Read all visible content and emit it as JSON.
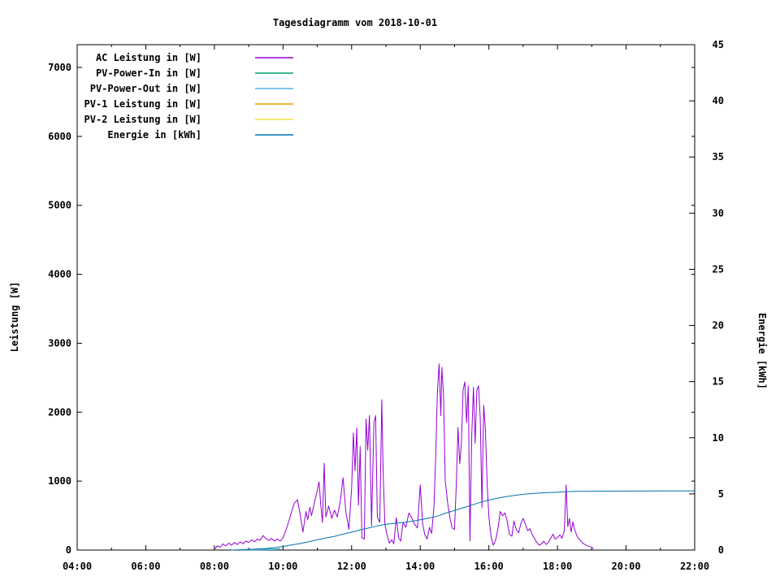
{
  "chart_data": {
    "type": "line",
    "title": "Tagesdiagramm vom 2018-10-01",
    "background": "#ffffff",
    "x_axis": {
      "range_hours": [
        4,
        22
      ],
      "minor_every_hours": 1,
      "major_ticks": [
        {
          "hour": 4,
          "label": "04:00"
        },
        {
          "hour": 6,
          "label": "06:00"
        },
        {
          "hour": 8,
          "label": "08:00"
        },
        {
          "hour": 10,
          "label": "10:00"
        },
        {
          "hour": 12,
          "label": "12:00"
        },
        {
          "hour": 14,
          "label": "14:00"
        },
        {
          "hour": 16,
          "label": "16:00"
        },
        {
          "hour": 18,
          "label": "18:00"
        },
        {
          "hour": 20,
          "label": "20:00"
        },
        {
          "hour": 22,
          "label": "22:00"
        }
      ]
    },
    "y_left": {
      "label": "Leistung [W]",
      "range": [
        0,
        7330
      ],
      "ticks": [
        {
          "value": 0,
          "label": "0"
        },
        {
          "value": 1000,
          "label": "1000"
        },
        {
          "value": 2000,
          "label": "2000"
        },
        {
          "value": 3000,
          "label": "3000"
        },
        {
          "value": 4000,
          "label": "4000"
        },
        {
          "value": 5000,
          "label": "5000"
        },
        {
          "value": 6000,
          "label": "6000"
        },
        {
          "value": 7000,
          "label": "7000"
        }
      ]
    },
    "y_right": {
      "label": "Energie [kWh]",
      "range": [
        0,
        45
      ],
      "ticks": [
        {
          "value": 0,
          "label": "0"
        },
        {
          "value": 5,
          "label": "5"
        },
        {
          "value": 10,
          "label": "10"
        },
        {
          "value": 15,
          "label": "15"
        },
        {
          "value": 20,
          "label": "20"
        },
        {
          "value": 25,
          "label": "25"
        },
        {
          "value": 30,
          "label": "30"
        },
        {
          "value": 35,
          "label": "35"
        },
        {
          "value": 40,
          "label": "40"
        },
        {
          "value": 45,
          "label": "45"
        }
      ]
    },
    "legend_position": "top-left-inside",
    "series": [
      {
        "name": "AC Leistung in [W]",
        "color": "#9400d3",
        "axis": "y1",
        "points": [
          [
            8.0,
            10
          ],
          [
            8.08,
            60
          ],
          [
            8.17,
            40
          ],
          [
            8.25,
            90
          ],
          [
            8.33,
            60
          ],
          [
            8.42,
            100
          ],
          [
            8.5,
            70
          ],
          [
            8.58,
            110
          ],
          [
            8.67,
            80
          ],
          [
            8.75,
            120
          ],
          [
            8.83,
            90
          ],
          [
            8.92,
            130
          ],
          [
            9.0,
            110
          ],
          [
            9.08,
            150
          ],
          [
            9.17,
            120
          ],
          [
            9.25,
            160
          ],
          [
            9.33,
            140
          ],
          [
            9.42,
            210
          ],
          [
            9.5,
            170
          ],
          [
            9.58,
            140
          ],
          [
            9.67,
            170
          ],
          [
            9.75,
            130
          ],
          [
            9.83,
            160
          ],
          [
            9.92,
            130
          ],
          [
            10.0,
            180
          ],
          [
            10.08,
            280
          ],
          [
            10.17,
            420
          ],
          [
            10.25,
            560
          ],
          [
            10.33,
            680
          ],
          [
            10.42,
            730
          ],
          [
            10.5,
            520
          ],
          [
            10.58,
            260
          ],
          [
            10.67,
            560
          ],
          [
            10.72,
            440
          ],
          [
            10.78,
            620
          ],
          [
            10.83,
            500
          ],
          [
            10.92,
            700
          ],
          [
            11.0,
            870
          ],
          [
            11.05,
            990
          ],
          [
            11.1,
            650
          ],
          [
            11.15,
            400
          ],
          [
            11.2,
            1260
          ],
          [
            11.25,
            480
          ],
          [
            11.33,
            640
          ],
          [
            11.42,
            460
          ],
          [
            11.5,
            580
          ],
          [
            11.58,
            480
          ],
          [
            11.67,
            700
          ],
          [
            11.75,
            1050
          ],
          [
            11.83,
            560
          ],
          [
            11.92,
            300
          ],
          [
            12.0,
            900
          ],
          [
            12.05,
            1700
          ],
          [
            12.1,
            1150
          ],
          [
            12.15,
            1770
          ],
          [
            12.2,
            650
          ],
          [
            12.25,
            1500
          ],
          [
            12.3,
            180
          ],
          [
            12.37,
            160
          ],
          [
            12.42,
            1900
          ],
          [
            12.47,
            1450
          ],
          [
            12.52,
            1950
          ],
          [
            12.58,
            350
          ],
          [
            12.65,
            1850
          ],
          [
            12.7,
            1950
          ],
          [
            12.75,
            480
          ],
          [
            12.82,
            400
          ],
          [
            12.88,
            2180
          ],
          [
            12.92,
            1100
          ],
          [
            12.97,
            380
          ],
          [
            13.03,
            220
          ],
          [
            13.1,
            100
          ],
          [
            13.17,
            150
          ],
          [
            13.23,
            90
          ],
          [
            13.3,
            470
          ],
          [
            13.37,
            180
          ],
          [
            13.43,
            130
          ],
          [
            13.5,
            400
          ],
          [
            13.58,
            330
          ],
          [
            13.67,
            540
          ],
          [
            13.75,
            470
          ],
          [
            13.83,
            380
          ],
          [
            13.92,
            320
          ],
          [
            14.0,
            945
          ],
          [
            14.07,
            380
          ],
          [
            14.13,
            230
          ],
          [
            14.2,
            160
          ],
          [
            14.27,
            330
          ],
          [
            14.33,
            240
          ],
          [
            14.4,
            620
          ],
          [
            14.45,
            1350
          ],
          [
            14.5,
            2280
          ],
          [
            14.55,
            2700
          ],
          [
            14.6,
            1950
          ],
          [
            14.63,
            2650
          ],
          [
            14.68,
            2250
          ],
          [
            14.73,
            1000
          ],
          [
            14.8,
            680
          ],
          [
            14.87,
            450
          ],
          [
            14.93,
            320
          ],
          [
            15.0,
            300
          ],
          [
            15.05,
            950
          ],
          [
            15.1,
            1780
          ],
          [
            15.15,
            1250
          ],
          [
            15.2,
            1550
          ],
          [
            15.25,
            2320
          ],
          [
            15.3,
            2440
          ],
          [
            15.35,
            1850
          ],
          [
            15.4,
            2380
          ],
          [
            15.45,
            130
          ],
          [
            15.5,
            1650
          ],
          [
            15.55,
            2360
          ],
          [
            15.6,
            1550
          ],
          [
            15.65,
            2320
          ],
          [
            15.7,
            2380
          ],
          [
            15.75,
            1900
          ],
          [
            15.8,
            620
          ],
          [
            15.85,
            2100
          ],
          [
            15.9,
            1750
          ],
          [
            15.95,
            950
          ],
          [
            16.0,
            480
          ],
          [
            16.07,
            180
          ],
          [
            16.13,
            70
          ],
          [
            16.2,
            150
          ],
          [
            16.27,
            330
          ],
          [
            16.33,
            560
          ],
          [
            16.4,
            500
          ],
          [
            16.47,
            540
          ],
          [
            16.53,
            430
          ],
          [
            16.6,
            230
          ],
          [
            16.67,
            200
          ],
          [
            16.73,
            420
          ],
          [
            16.8,
            300
          ],
          [
            16.87,
            250
          ],
          [
            16.93,
            380
          ],
          [
            17.0,
            460
          ],
          [
            17.07,
            370
          ],
          [
            17.13,
            280
          ],
          [
            17.2,
            310
          ],
          [
            17.27,
            220
          ],
          [
            17.33,
            170
          ],
          [
            17.4,
            110
          ],
          [
            17.47,
            70
          ],
          [
            17.53,
            90
          ],
          [
            17.6,
            130
          ],
          [
            17.67,
            80
          ],
          [
            17.73,
            110
          ],
          [
            17.8,
            170
          ],
          [
            17.87,
            230
          ],
          [
            17.93,
            160
          ],
          [
            18.0,
            180
          ],
          [
            18.07,
            220
          ],
          [
            18.13,
            170
          ],
          [
            18.2,
            280
          ],
          [
            18.25,
            945
          ],
          [
            18.3,
            340
          ],
          [
            18.35,
            460
          ],
          [
            18.4,
            260
          ],
          [
            18.45,
            410
          ],
          [
            18.5,
            300
          ],
          [
            18.57,
            200
          ],
          [
            18.63,
            160
          ],
          [
            18.7,
            120
          ],
          [
            18.77,
            90
          ],
          [
            18.83,
            70
          ],
          [
            18.9,
            55
          ],
          [
            18.97,
            45
          ],
          [
            19.05,
            25
          ]
        ]
      },
      {
        "name": "PV-Power-In in [W]",
        "color": "#009e73",
        "axis": "y1",
        "points": [
          [
            8.75,
            5
          ],
          [
            9.0,
            8
          ],
          [
            9.25,
            10
          ],
          [
            9.5,
            12
          ],
          [
            9.75,
            15
          ],
          [
            9.92,
            18
          ]
        ]
      },
      {
        "name": "PV-Power-Out in [W]",
        "color": "#56b4e9",
        "axis": "y1",
        "points": [
          [
            8.75,
            2
          ],
          [
            9.25,
            4
          ],
          [
            9.75,
            6
          ],
          [
            9.92,
            8
          ]
        ]
      },
      {
        "name": "PV-1 Leistung in [W]",
        "color": "#e69f00",
        "axis": "y1",
        "points": []
      },
      {
        "name": "PV-2 Leistung in [W]",
        "color": "#f0e442",
        "axis": "y1",
        "points": []
      },
      {
        "name": "Energie in [kWh]",
        "color": "#0072b2",
        "axis": "y2",
        "points": [
          [
            8.5,
            0
          ],
          [
            8.75,
            0.03
          ],
          [
            9.0,
            0.06
          ],
          [
            9.25,
            0.1
          ],
          [
            9.5,
            0.14
          ],
          [
            9.75,
            0.22
          ],
          [
            10.0,
            0.32
          ],
          [
            10.25,
            0.46
          ],
          [
            10.5,
            0.58
          ],
          [
            10.75,
            0.74
          ],
          [
            11.0,
            0.92
          ],
          [
            11.25,
            1.08
          ],
          [
            11.5,
            1.22
          ],
          [
            11.75,
            1.42
          ],
          [
            12.0,
            1.6
          ],
          [
            12.25,
            1.8
          ],
          [
            12.5,
            1.97
          ],
          [
            12.75,
            2.15
          ],
          [
            13.0,
            2.3
          ],
          [
            13.25,
            2.38
          ],
          [
            13.5,
            2.46
          ],
          [
            13.75,
            2.56
          ],
          [
            14.0,
            2.7
          ],
          [
            14.25,
            2.85
          ],
          [
            14.5,
            3.02
          ],
          [
            14.75,
            3.3
          ],
          [
            15.0,
            3.52
          ],
          [
            15.25,
            3.76
          ],
          [
            15.5,
            4.0
          ],
          [
            15.75,
            4.25
          ],
          [
            16.0,
            4.45
          ],
          [
            16.25,
            4.62
          ],
          [
            16.5,
            4.76
          ],
          [
            16.75,
            4.87
          ],
          [
            17.0,
            4.96
          ],
          [
            17.25,
            5.03
          ],
          [
            17.5,
            5.08
          ],
          [
            17.75,
            5.12
          ],
          [
            18.0,
            5.16
          ],
          [
            18.25,
            5.2
          ],
          [
            18.5,
            5.22
          ],
          [
            19.0,
            5.24
          ],
          [
            20.0,
            5.25
          ],
          [
            21.0,
            5.26
          ],
          [
            22.0,
            5.27
          ]
        ]
      }
    ]
  }
}
